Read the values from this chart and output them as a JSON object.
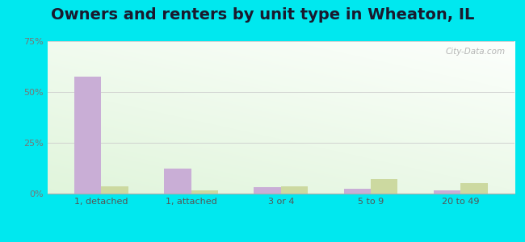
{
  "title": "Owners and renters by unit type in Wheaton, IL",
  "categories": [
    "1, detached",
    "1, attached",
    "3 or 4",
    "5 to 9",
    "20 to 49"
  ],
  "owner_values": [
    57.5,
    12.5,
    3.0,
    2.5,
    1.5
  ],
  "renter_values": [
    3.5,
    1.5,
    3.5,
    7.0,
    5.0
  ],
  "owner_color": "#c9aed6",
  "renter_color": "#ccd9a0",
  "ylim": [
    0,
    75
  ],
  "yticks": [
    0,
    25,
    50,
    75
  ],
  "ytick_labels": [
    "0%",
    "25%",
    "50%",
    "75%"
  ],
  "bg_outer": "#00e8ef",
  "title_fontsize": 14,
  "watermark": "City-Data.com",
  "bar_width": 0.3,
  "grad_top_color": "#c8e6c0",
  "grad_bottom_color": "#f0f8ee"
}
